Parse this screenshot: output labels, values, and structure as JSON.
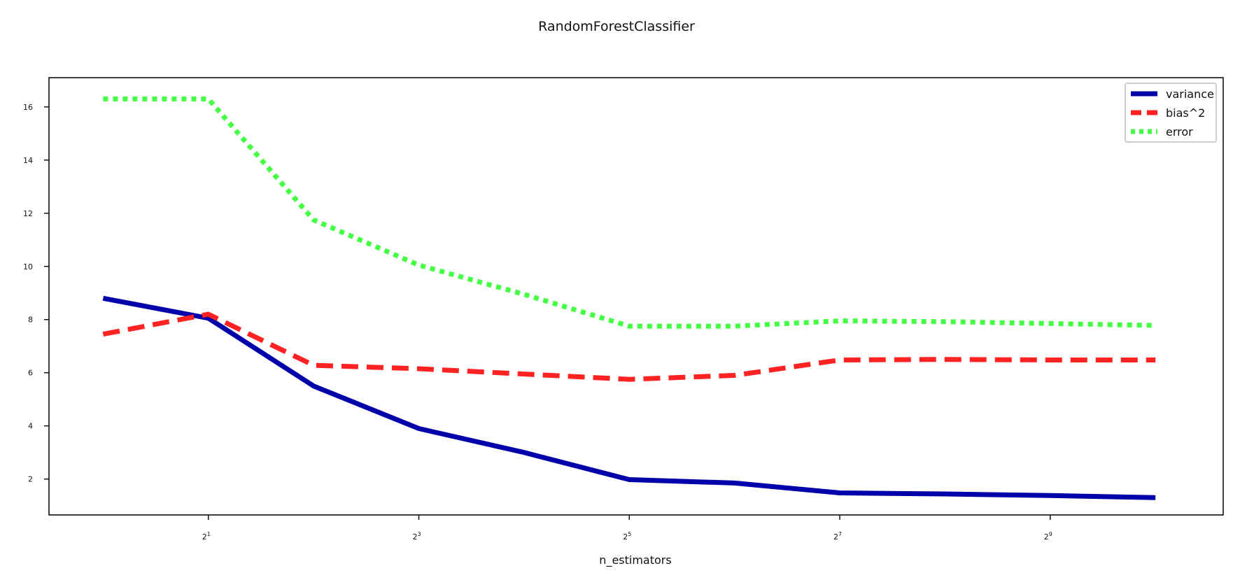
{
  "chart_data": {
    "type": "line",
    "title": "RandomForestClassifier",
    "xlabel": "n_estimators",
    "ylabel": "",
    "x_scale": "log2",
    "x": [
      1,
      2,
      4,
      8,
      16,
      32,
      64,
      128,
      256,
      512,
      1024
    ],
    "x_ticks": [
      {
        "value": 2,
        "base": "2",
        "exp": "1"
      },
      {
        "value": 8,
        "base": "2",
        "exp": "3"
      },
      {
        "value": 32,
        "base": "2",
        "exp": "5"
      },
      {
        "value": 128,
        "base": "2",
        "exp": "7"
      },
      {
        "value": 512,
        "base": "2",
        "exp": "9"
      }
    ],
    "y_ticks": [
      2,
      4,
      6,
      8,
      10,
      12,
      14,
      16
    ],
    "xlim": [
      0.7,
      1600
    ],
    "ylim": [
      0.65,
      17.1
    ],
    "grid": false,
    "legend_position": "top-right",
    "series": [
      {
        "name": "variance",
        "style": "solid",
        "color": "#0000aa",
        "values": [
          8.8,
          8.05,
          5.5,
          3.9,
          3.0,
          1.98,
          1.85,
          1.48,
          1.44,
          1.38,
          1.3
        ]
      },
      {
        "name": "bias^2",
        "style": "dashed",
        "color": "#ff2222",
        "values": [
          7.45,
          8.2,
          6.28,
          6.15,
          5.95,
          5.75,
          5.9,
          6.48,
          6.5,
          6.48,
          6.48
        ]
      },
      {
        "name": "error",
        "style": "dotted",
        "color": "#44ff44",
        "values": [
          16.3,
          16.3,
          11.75,
          10.05,
          8.95,
          7.75,
          7.75,
          7.95,
          7.92,
          7.85,
          7.78
        ]
      }
    ]
  }
}
